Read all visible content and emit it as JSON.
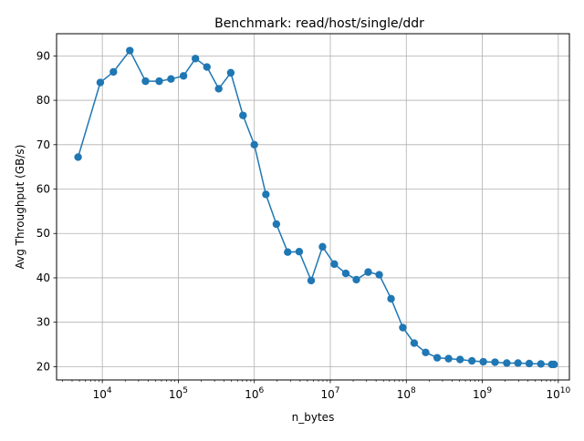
{
  "chart_data": {
    "type": "line",
    "title": "Benchmark: read/host/single/ddr",
    "xlabel": "n_bytes",
    "ylabel": "Avg Throughput (GB/s)",
    "xscale": "log",
    "xlim": [
      2500,
      14000000000
    ],
    "ylim": [
      17,
      95
    ],
    "grid": true,
    "marker": "circle",
    "color": "#1f77b4",
    "x_ticks": [
      {
        "base": "10",
        "exp": "4",
        "value": 10000
      },
      {
        "base": "10",
        "exp": "5",
        "value": 100000
      },
      {
        "base": "10",
        "exp": "6",
        "value": 1000000
      },
      {
        "base": "10",
        "exp": "7",
        "value": 10000000
      },
      {
        "base": "10",
        "exp": "8",
        "value": 100000000
      },
      {
        "base": "10",
        "exp": "9",
        "value": 1000000000
      },
      {
        "base": "10",
        "exp": "10",
        "value": 10000000000
      }
    ],
    "y_ticks": [
      "20",
      "30",
      "40",
      "50",
      "60",
      "70",
      "80",
      "90"
    ],
    "series": [
      {
        "x": [
          4800,
          9400,
          14000,
          23000,
          37000,
          56000,
          80000,
          117000,
          168000,
          238000,
          340000,
          490000,
          710000,
          1000000,
          1420000,
          1950000,
          2750000,
          3900000,
          5600000,
          7900000,
          11300000,
          16000000,
          22000000,
          31500000,
          44000000,
          63000000,
          90000000,
          127000000,
          180000000,
          255000000,
          360000000,
          510000000,
          730000000,
          1030000000,
          1470000000,
          2100000000,
          2950000000,
          4150000000,
          5900000000,
          8200000000,
          8800000000
        ],
        "y": [
          67.2,
          84.0,
          86.4,
          91.2,
          84.3,
          84.3,
          84.8,
          85.5,
          89.4,
          87.5,
          82.6,
          86.2,
          76.6,
          70.0,
          58.8,
          52.1,
          45.8,
          45.9,
          39.4,
          47.0,
          43.1,
          41.0,
          39.6,
          41.3,
          40.7,
          35.3,
          28.8,
          25.3,
          23.2,
          22.0,
          21.8,
          21.6,
          21.3,
          21.1,
          21.0,
          20.8,
          20.8,
          20.7,
          20.6,
          20.5,
          20.5
        ]
      }
    ]
  }
}
